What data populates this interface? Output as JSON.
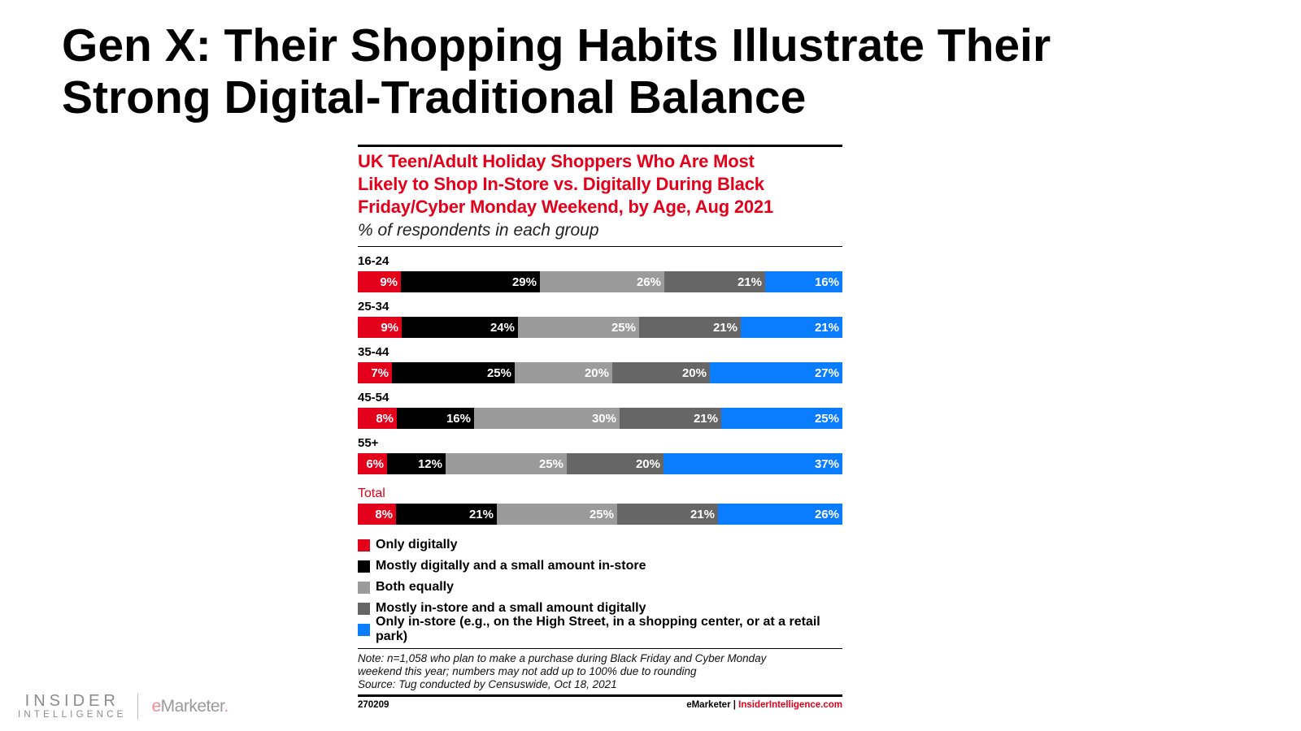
{
  "slide": {
    "title_line1": "Gen X: Their Shopping Habits Illustrate Their",
    "title_line2": "Strong Digital-Traditional Balance"
  },
  "chart_data": {
    "type": "bar",
    "stacked": true,
    "orientation": "horizontal",
    "title_lines": [
      "UK Teen/Adult Holiday Shoppers Who Are Most",
      "Likely to Shop In-Store vs. Digitally During Black",
      "Friday/Cyber Monday Weekend, by Age, Aug 2021"
    ],
    "subtitle": "% of respondents in each group",
    "unit": "%",
    "categories": [
      "16-24",
      "25-34",
      "35-44",
      "45-54",
      "55+",
      "Total"
    ],
    "series": [
      {
        "name": "Only digitally",
        "color": "#e3001b",
        "values": [
          9,
          9,
          7,
          8,
          6,
          8
        ]
      },
      {
        "name": "Mostly digitally and a small amount in-store",
        "color": "#000000",
        "values": [
          29,
          24,
          25,
          16,
          12,
          21
        ]
      },
      {
        "name": "Both equally",
        "color": "#9b9b9b",
        "values": [
          26,
          25,
          20,
          30,
          25,
          25
        ]
      },
      {
        "name": "Mostly in-store and a small amount digitally",
        "color": "#666666",
        "values": [
          21,
          21,
          20,
          21,
          20,
          21
        ]
      },
      {
        "name": "Only in-store (e.g., on the High Street, in a shopping center, or at a retail park)",
        "color": "#0a7cff",
        "values": [
          16,
          21,
          27,
          25,
          37,
          26
        ]
      }
    ],
    "legend_position": "bottom",
    "note_lines": [
      "Note: n=1,058 who plan to make a purchase during Black Friday and Cyber Monday",
      "weekend this year; numbers may not add up to 100% due to rounding",
      "Source: Tug conducted by Censuswide, Oct 18, 2021"
    ],
    "chart_id": "270209",
    "footer_brand": "eMarketer",
    "footer_separator": "|",
    "footer_site": "InsiderIntelligence.com"
  },
  "logos": {
    "insider_line1": "INSIDER",
    "insider_line2": "INTELLIGENCE",
    "emarketer_e": "e",
    "emarketer_rest": "Marketer",
    "emarketer_mark": "."
  }
}
